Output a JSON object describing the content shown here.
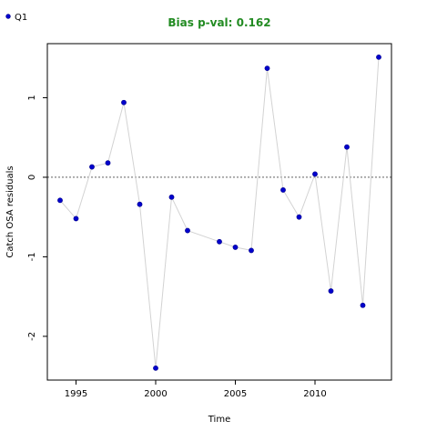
{
  "chart_data": {
    "type": "scatter",
    "title": "Bias p-val: 0.162",
    "xlabel": "Time",
    "ylabel": "Catch OSA residuals",
    "xlim": [
      1993.2,
      2014.8
    ],
    "ylim": [
      -2.55,
      1.68
    ],
    "x_ticks": [
      1995,
      2000,
      2005,
      2010
    ],
    "y_ticks": [
      -2,
      -1,
      0,
      1
    ],
    "reference_line": 0,
    "legend": {
      "position": "top-left",
      "entries": [
        "Q1"
      ]
    },
    "series": [
      {
        "name": "Q1",
        "x": [
          1994,
          1995,
          1996,
          1997,
          1998,
          1999,
          2000,
          2001,
          2002,
          2004,
          2005,
          2006,
          2007,
          2008,
          2009,
          2010,
          2011,
          2012,
          2013,
          2014
        ],
        "y": [
          -0.29,
          -0.52,
          0.13,
          0.18,
          0.94,
          -0.34,
          -2.4,
          -0.25,
          -0.67,
          -0.81,
          -0.88,
          -0.92,
          1.37,
          -0.16,
          -0.5,
          0.04,
          -1.43,
          0.38,
          -1.61,
          1.51
        ]
      }
    ]
  },
  "colors": {
    "point": "#0000cd",
    "point_stroke": "#00008b",
    "connector": "#d3d3d3",
    "title": "#228b22",
    "axis": "#000000"
  }
}
